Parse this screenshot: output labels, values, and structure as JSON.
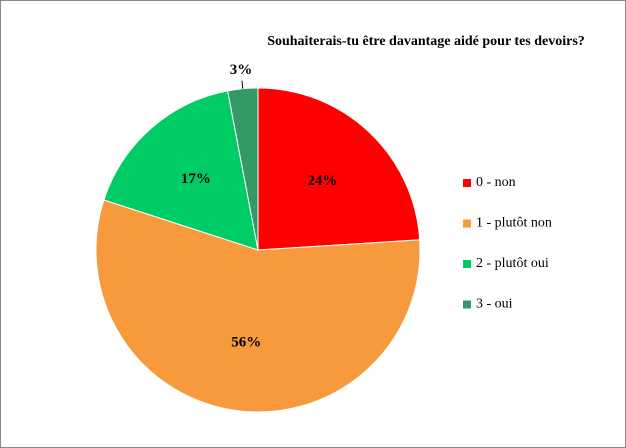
{
  "chart_data": {
    "type": "pie",
    "title": "Souhaiterais-tu être davantage aidé pour tes devoirs?",
    "categories": [
      "0 - non",
      "1 - plutôt non",
      "2 - plutôt oui",
      "3 - oui"
    ],
    "values": [
      24,
      56,
      17,
      3
    ],
    "value_labels": [
      "24%",
      "56%",
      "17%",
      "3%"
    ],
    "colors": [
      "#ff0000",
      "#f79a3e",
      "#00cc66",
      "#339966"
    ],
    "legend": "right"
  }
}
